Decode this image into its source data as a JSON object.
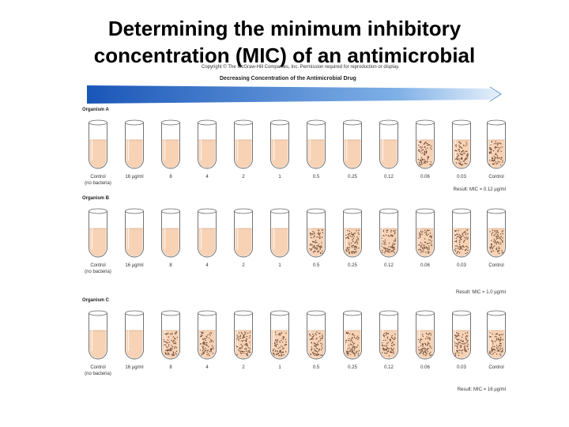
{
  "title_line1": "Determining the minimum inhibitory",
  "title_line2": "concentration (MIC) of an antimicrobial",
  "copyright": "Copyright © The McGraw-Hill Companies, Inc. Permission required for reproduction or display.",
  "gradient_label": "Decreasing Concentration of the Antimicrobial Drug",
  "tube_labels": [
    "Control\n(no bacteria)",
    "16 µg/ml",
    "8",
    "4",
    "2",
    "1",
    "0.5",
    "0.25",
    "0.12",
    "0.06",
    "0.03",
    "Control"
  ],
  "organisms": [
    {
      "name": "Organism A",
      "growth": [
        0,
        0,
        0,
        0,
        0,
        0,
        0,
        0,
        0,
        1,
        1,
        1
      ],
      "result": "Result: MIC = 0.12 µg/ml"
    },
    {
      "name": "Organism B",
      "growth": [
        0,
        0,
        0,
        0,
        0,
        0,
        1,
        1,
        1,
        1,
        1,
        1
      ],
      "result": "Result: MIC = 1.0 µg/ml"
    },
    {
      "name": "Organism C",
      "growth": [
        0,
        0,
        1,
        1,
        1,
        1,
        1,
        1,
        1,
        1,
        1,
        1
      ],
      "result": "Result: MIC = 16 µg/ml"
    }
  ],
  "colors": {
    "medium": "#f7d2b5",
    "dots": "#6b4a36",
    "arrow": "#2b6cc4"
  }
}
